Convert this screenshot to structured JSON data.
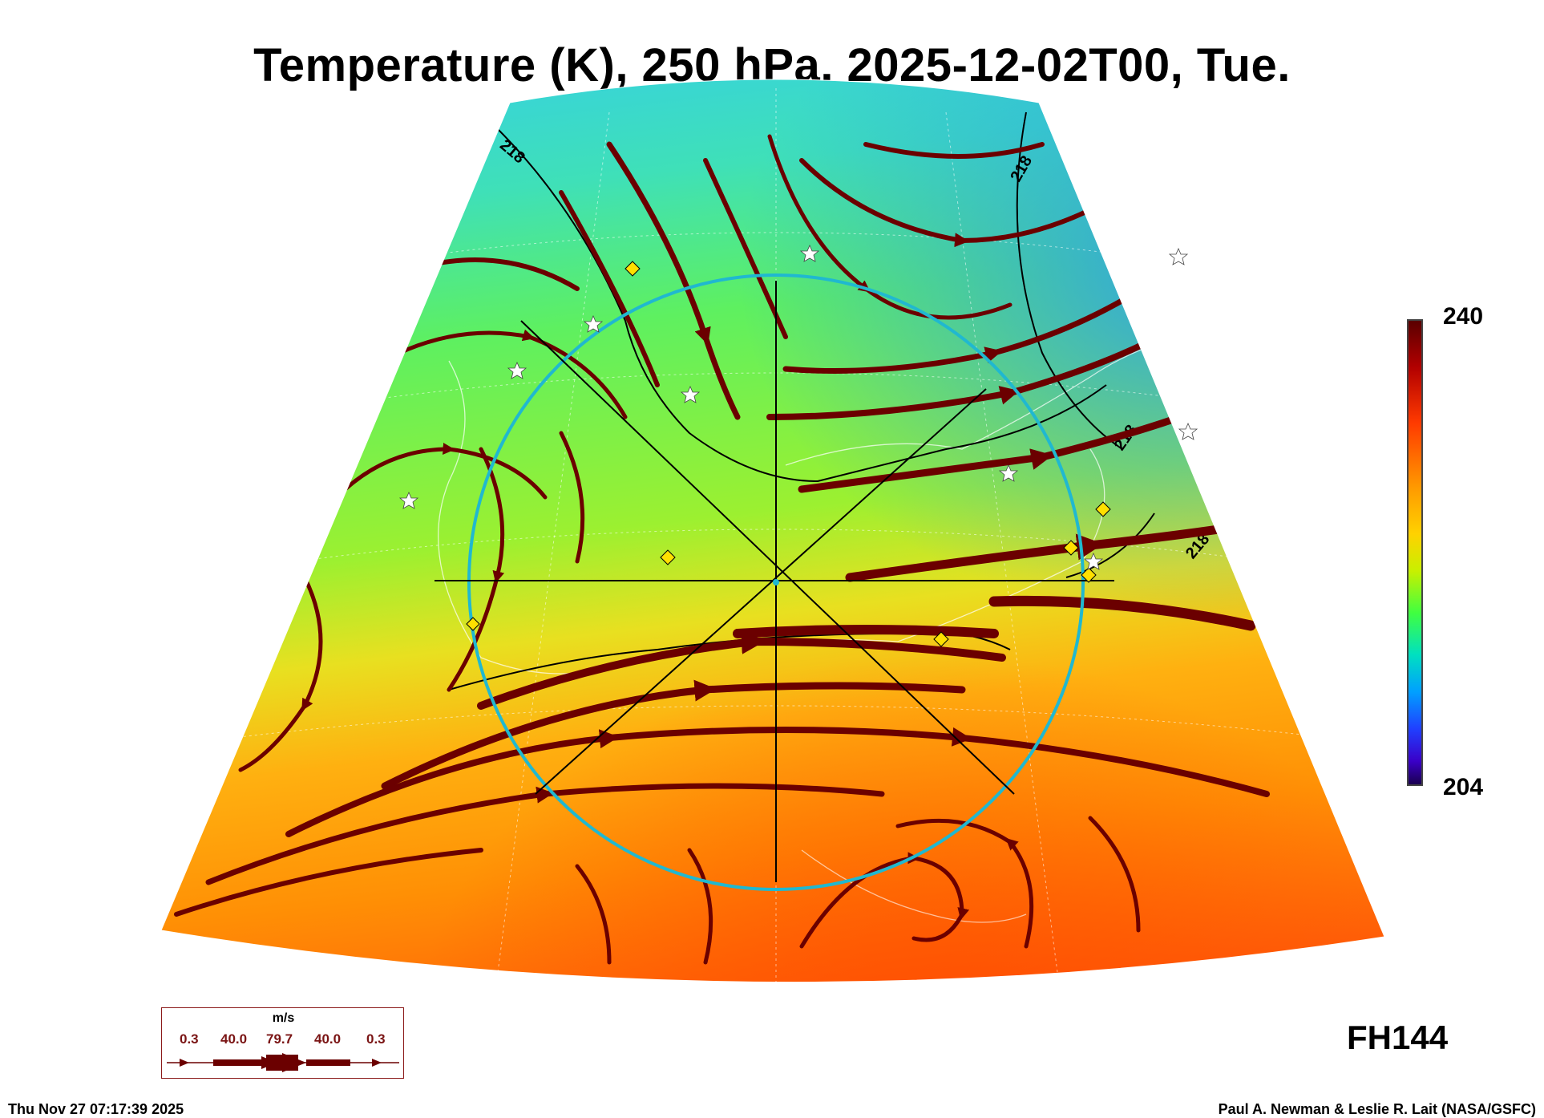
{
  "title": "Temperature (K), 250 hPa, 2025-12-02T00, Tue.",
  "colorbar": {
    "max_label": "240",
    "min_label": "204",
    "range": [
      204,
      240
    ],
    "colors": [
      "#5a0000",
      "#b20000",
      "#ff3a00",
      "#ff9a00",
      "#ffd200",
      "#c8f000",
      "#40ff40",
      "#00e0c0",
      "#00a0ff",
      "#2040ff",
      "#3a00c8",
      "#1a0050"
    ]
  },
  "contour_labels": [
    "218",
    "218",
    "218",
    "218"
  ],
  "wind_legend": {
    "unit": "m/s",
    "values": [
      "0.3",
      "40.0",
      "79.7",
      "40.0",
      "0.3"
    ],
    "arrow_color": "#6b0000"
  },
  "forecast_hour": "FH144",
  "footer": {
    "timestamp": "Thu Nov 27 07:17:39 2025",
    "credit": "Paul A. Newman & Leslie R. Lait (NASA/GSFC)"
  },
  "markers": {
    "diamond_color": "#ffe000",
    "star_color": "#ffffff",
    "ring_color": "#20b8d0"
  }
}
